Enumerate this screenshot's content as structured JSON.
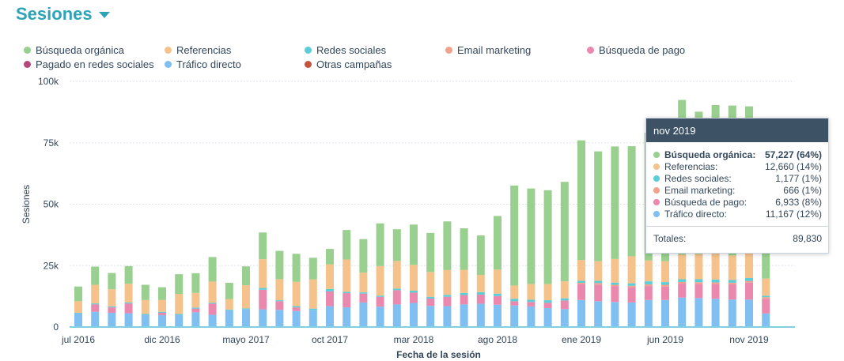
{
  "header": {
    "title": "Sesiones",
    "dropdown_icon": "caret-down-icon"
  },
  "colors": {
    "busqueda_organica": "#99cf8f",
    "referencias": "#f5c28c",
    "redes_sociales": "#59cdd8",
    "email_marketing": "#f2a18a",
    "busqueda_pago": "#ea88ad",
    "pagado_redes": "#b5487a",
    "trafico_directo": "#7fbff2",
    "otras_campanas": "#c5533d"
  },
  "legend": [
    {
      "label": "Búsqueda orgánica",
      "color": "#99cf8f"
    },
    {
      "label": "Referencias",
      "color": "#f5c28c"
    },
    {
      "label": "Redes sociales",
      "color": "#59cdd8"
    },
    {
      "label": "Email marketing",
      "color": "#f2a18a"
    },
    {
      "label": "Búsqueda de pago",
      "color": "#ea88ad"
    },
    {
      "label": "Pagado en redes sociales",
      "color": "#b5487a"
    },
    {
      "label": "Tráfico directo",
      "color": "#7fbff2"
    },
    {
      "label": "Otras campañas",
      "color": "#c5533d"
    }
  ],
  "tooltip": {
    "title": "nov 2019",
    "rows": [
      {
        "label": "Búsqueda orgánica:",
        "value": "57,227 (64%)",
        "color": "#99cf8f"
      },
      {
        "label": "Referencias:",
        "value": "12,660 (14%)",
        "color": "#f5c28c"
      },
      {
        "label": "Redes sociales:",
        "value": "1,177 (1%)",
        "color": "#59cdd8"
      },
      {
        "label": "Email marketing:",
        "value": "666 (1%)",
        "color": "#f2a18a"
      },
      {
        "label": "Búsqueda de pago:",
        "value": "6,933 (8%)",
        "color": "#ea88ad"
      },
      {
        "label": "Tráfico directo:",
        "value": "11,167 (12%)",
        "color": "#7fbff2"
      }
    ],
    "total_label": "Totales:",
    "total_value": "89,830"
  },
  "chart_data": {
    "type": "bar",
    "stacked": true,
    "xlabel": "Fecha de la sesión",
    "ylabel": "Sesiones",
    "ylim": [
      0,
      100000
    ],
    "yticks": [
      0,
      25000,
      50000,
      75000,
      100000
    ],
    "ytick_labels": [
      "0",
      "25k",
      "50k",
      "75k",
      "100k"
    ],
    "grid": true,
    "legend_position": "top",
    "categories": [
      "jul 2016",
      "ago 2016",
      "sep 2016",
      "oct 2016",
      "nov 2016",
      "dic 2016",
      "ene 2017",
      "feb 2017",
      "mar 2017",
      "abr 2017",
      "may 2017",
      "jun 2017",
      "jul 2017",
      "ago 2017",
      "sep 2017",
      "oct 2017",
      "nov 2017",
      "dic 2017",
      "ene 2018",
      "feb 2018",
      "mar 2018",
      "abr 2018",
      "may 2018",
      "jun 2018",
      "jul 2018",
      "ago 2018",
      "sep 2018",
      "oct 2018",
      "nov 2018",
      "dic 2018",
      "ene 2019",
      "feb 2019",
      "mar 2019",
      "abr 2019",
      "may 2019",
      "jun 2019",
      "jul 2019",
      "ago 2019",
      "sep 2019",
      "oct 2019",
      "nov 2019",
      "dic 2019"
    ],
    "xtick_labels": [
      {
        "index": 0,
        "label": "jul 2016"
      },
      {
        "index": 5,
        "label": "dic 2016"
      },
      {
        "index": 10,
        "label": "mayo 2017"
      },
      {
        "index": 15,
        "label": "oct 2017"
      },
      {
        "index": 20,
        "label": "mar 2018"
      },
      {
        "index": 25,
        "label": "ago 2018"
      },
      {
        "index": 30,
        "label": "ene 2019"
      },
      {
        "index": 35,
        "label": "jun 2019"
      },
      {
        "index": 40,
        "label": "nov 2019"
      }
    ],
    "series": [
      {
        "name": "Tráfico directo",
        "color": "#7fbff2",
        "values": [
          5500,
          6200,
          5800,
          5600,
          5000,
          4800,
          5000,
          6000,
          5000,
          6800,
          7300,
          7200,
          7000,
          6500,
          7000,
          8500,
          8000,
          10000,
          8300,
          9200,
          9800,
          8600,
          8500,
          9200,
          9500,
          9100,
          8800,
          8400,
          7700,
          7300,
          11000,
          10500,
          10200,
          10000,
          11000,
          11000,
          12000,
          11800,
          11500,
          11200,
          11167,
          5500
        ]
      },
      {
        "name": "Búsqueda de pago",
        "color": "#ea88ad",
        "values": [
          0,
          3000,
          2200,
          4000,
          0,
          1000,
          0,
          1500,
          4500,
          0,
          0,
          8000,
          3500,
          1500,
          0,
          6000,
          5800,
          3600,
          4000,
          5800,
          4200,
          3000,
          3800,
          3800,
          3700,
          3500,
          1700,
          1800,
          2200,
          3500,
          6500,
          6800,
          6500,
          6200,
          5700,
          5500,
          5700,
          5800,
          6000,
          6200,
          6933,
          6000
        ]
      },
      {
        "name": "Email marketing",
        "color": "#f2a18a",
        "values": [
          0,
          0,
          0,
          0,
          0,
          0,
          0,
          0,
          0,
          0,
          0,
          0,
          0,
          0,
          0,
          0,
          0,
          0,
          0,
          0,
          0,
          0,
          0,
          0,
          0,
          0,
          0,
          0,
          0,
          0,
          500,
          600,
          500,
          600,
          700,
          700,
          650,
          650,
          650,
          650,
          666,
          650
        ]
      },
      {
        "name": "Redes sociales",
        "color": "#59cdd8",
        "values": [
          300,
          400,
          400,
          400,
          300,
          400,
          300,
          400,
          400,
          300,
          300,
          700,
          400,
          500,
          500,
          1000,
          500,
          500,
          500,
          600,
          800,
          700,
          800,
          900,
          1000,
          1000,
          1000,
          900,
          1000,
          900,
          800,
          900,
          900,
          1000,
          1200,
          1100,
          1100,
          1200,
          1200,
          1100,
          1177,
          600
        ]
      },
      {
        "name": "Referencias",
        "color": "#f5c28c",
        "values": [
          4700,
          7600,
          7000,
          7600,
          5700,
          4800,
          8200,
          6000,
          8600,
          4300,
          9400,
          11700,
          8600,
          9900,
          11900,
          10000,
          13200,
          8000,
          12000,
          11300,
          10500,
          10100,
          10100,
          9400,
          7000,
          9800,
          5400,
          6400,
          6600,
          6900,
          8500,
          8000,
          9600,
          11000,
          8500,
          8500,
          10000,
          10200,
          11000,
          10000,
          12660,
          7000
        ]
      },
      {
        "name": "Búsqueda orgánica",
        "color": "#99cf8f",
        "values": [
          6000,
          7400,
          6600,
          7200,
          6200,
          5200,
          8000,
          8000,
          10000,
          6600,
          7700,
          10900,
          11500,
          11400,
          8800,
          6300,
          12000,
          13700,
          17400,
          12900,
          16400,
          15900,
          19800,
          16900,
          16100,
          21800,
          40700,
          38900,
          38200,
          40500,
          48700,
          44700,
          45800,
          44800,
          52000,
          58000,
          63000,
          58000,
          60000,
          61000,
          57227,
          28000
        ]
      }
    ]
  }
}
